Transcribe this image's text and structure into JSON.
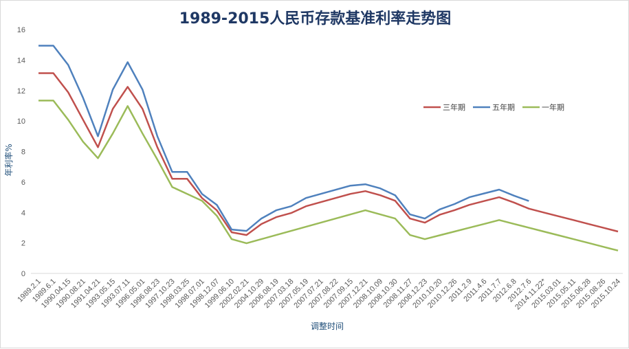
{
  "chart_data": {
    "type": "line",
    "title": "1989-2015人民币存款基准利率走势图",
    "xlabel": "调整时间",
    "ylabel": "年利率%",
    "ylim": [
      0,
      16
    ],
    "yticks": [
      0,
      2,
      4,
      6,
      8,
      10,
      12,
      14,
      16
    ],
    "grid": false,
    "legend_placement": "right",
    "categories": [
      "1989.2.1",
      "1989.6.1",
      "1990.04.15",
      "1990.08.21",
      "1991.04.21",
      "1993.05.15",
      "1993.07.11",
      "1996.05.01",
      "1996.08.23",
      "1997.10.23",
      "1998.03.25",
      "1998.07.01",
      "1998.12.07",
      "1999.06.10",
      "2002.02.21",
      "2004.10.29",
      "2006.08.19",
      "2007.03.18",
      "2007.05.19",
      "2007.07.21",
      "2007.08.22",
      "2007.09.15",
      "2007.12.21",
      "2008.10.09",
      "2008.10.30",
      "2008.11.27",
      "2008.12.23",
      "2010.10.20",
      "2010.12.26",
      "2011.2.9",
      "2011.4.6",
      "2011.7.7",
      "2012.6.8",
      "2012.7.6",
      "2014.11.22*",
      "2015.03.01",
      "2015.05.11",
      "2015.06.28",
      "2015.08.26",
      "2015.10.24"
    ],
    "series": [
      {
        "name": "三年期",
        "color": "#c0504d",
        "values": [
          13.14,
          13.14,
          11.88,
          10.08,
          8.28,
          10.8,
          12.24,
          10.8,
          8.28,
          6.21,
          6.21,
          4.95,
          4.14,
          2.7,
          2.52,
          3.24,
          3.69,
          3.96,
          4.41,
          4.68,
          4.95,
          5.22,
          5.4,
          5.13,
          4.77,
          3.6,
          3.33,
          3.85,
          4.15,
          4.5,
          4.75,
          5.0,
          4.65,
          4.25,
          4.0,
          3.75,
          3.5,
          3.25,
          3.0,
          2.75
        ]
      },
      {
        "name": "五年期",
        "color": "#4f81bd",
        "values": [
          14.94,
          14.94,
          13.68,
          11.52,
          9.0,
          12.06,
          13.86,
          12.06,
          9.0,
          6.66,
          6.66,
          5.22,
          4.5,
          2.88,
          2.79,
          3.6,
          4.14,
          4.41,
          4.95,
          5.22,
          5.49,
          5.76,
          5.85,
          5.58,
          5.13,
          3.87,
          3.6,
          4.2,
          4.55,
          5.0,
          5.25,
          5.5,
          5.1,
          4.75,
          null,
          null,
          null,
          null,
          null,
          null
        ]
      },
      {
        "name": "一年期",
        "color": "#9bbb59",
        "values": [
          11.34,
          11.34,
          10.08,
          8.64,
          7.56,
          9.18,
          10.98,
          9.18,
          7.47,
          5.67,
          5.22,
          4.77,
          3.78,
          2.25,
          1.98,
          2.25,
          2.52,
          2.79,
          3.06,
          3.33,
          3.6,
          3.87,
          4.14,
          3.87,
          3.6,
          2.52,
          2.25,
          2.5,
          2.75,
          3.0,
          3.25,
          3.5,
          3.25,
          3.0,
          2.75,
          2.5,
          2.25,
          2.0,
          1.75,
          1.5
        ]
      }
    ]
  }
}
